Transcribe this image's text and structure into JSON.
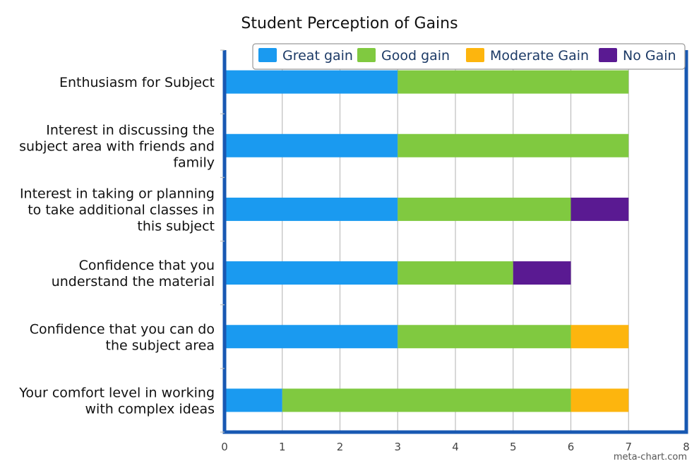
{
  "chart_data": {
    "type": "bar",
    "orientation": "horizontal",
    "stacked": true,
    "title": "Student Perception of Gains",
    "xlabel": "",
    "ylabel": "",
    "xlim": [
      0,
      8
    ],
    "x_ticks": [
      0,
      1,
      2,
      3,
      4,
      5,
      6,
      7,
      8
    ],
    "grid": true,
    "legend_position": "top",
    "categories": [
      "Enthusiasm for Subject",
      "Interest in discussing the subject area with friends and family",
      "Interest in taking or planning to take additional classes in this subject",
      "Confidence that you understand the material",
      "Confidence that you can do the subject area",
      "Your comfort level in working with complex ideas"
    ],
    "category_lines": [
      [
        "Enthusiasm for Subject"
      ],
      [
        "Interest in discussing the",
        "subject area with friends and",
        "family"
      ],
      [
        "Interest in taking or planning",
        "to take additional classes in",
        "this subject"
      ],
      [
        "Confidence that you",
        "understand the material"
      ],
      [
        "Confidence that you can do",
        "the subject area"
      ],
      [
        "Your comfort level in working",
        "with complex ideas"
      ]
    ],
    "series": [
      {
        "name": "Great gain",
        "color": "#1a9af0",
        "values": [
          3,
          3,
          3,
          3,
          3,
          1
        ]
      },
      {
        "name": "Good gain",
        "color": "#80c940",
        "values": [
          4,
          4,
          3,
          2,
          3,
          5
        ]
      },
      {
        "name": "Moderate Gain",
        "color": "#fdb50e",
        "values": [
          0,
          0,
          0,
          0,
          1,
          1
        ]
      },
      {
        "name": "No Gain",
        "color": "#5a1a92",
        "values": [
          0,
          0,
          1,
          1,
          0,
          0
        ]
      }
    ],
    "frame_color": "#1858b2",
    "watermark": "meta-chart.com"
  }
}
